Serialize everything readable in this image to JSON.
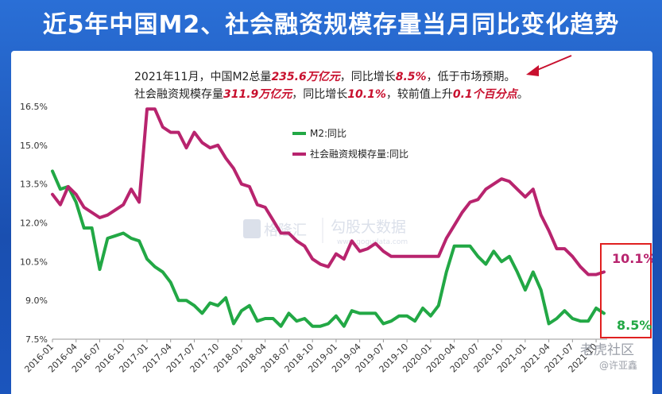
{
  "title": "近5年中国M2、社会融资规模存量当月同比变化趋势",
  "note": {
    "line1": [
      "2021年11月，中国M2总量",
      "235.6万亿元",
      "，同比增长",
      "8.5%",
      "，低于市场预期。"
    ],
    "line2": [
      "社会融资规模存量",
      "311.9万亿元",
      "，同比增长",
      "10.1%",
      "，较前值上升",
      "0.1个百分点",
      "。"
    ]
  },
  "watermark": {
    "brand": "格隆汇",
    "text": "勾股大数据",
    "url": "www.gogudata.com"
  },
  "corner_watermark": {
    "line1": "老虎社区",
    "line2": "@许亚鑫"
  },
  "colors": {
    "m2": "#22a845",
    "tsf": "#b8246e",
    "arrow": "#c8102e",
    "box": "#e02020"
  },
  "chart_data": {
    "type": "line",
    "x": [
      "2016-01",
      "2016-02",
      "2016-03",
      "2016-04",
      "2016-05",
      "2016-06",
      "2016-07",
      "2016-08",
      "2016-09",
      "2016-10",
      "2016-11",
      "2016-12",
      "2017-01",
      "2017-02",
      "2017-03",
      "2017-04",
      "2017-05",
      "2017-06",
      "2017-07",
      "2017-08",
      "2017-09",
      "2017-10",
      "2017-11",
      "2017-12",
      "2018-01",
      "2018-02",
      "2018-03",
      "2018-04",
      "2018-05",
      "2018-06",
      "2018-07",
      "2018-08",
      "2018-09",
      "2018-10",
      "2018-11",
      "2018-12",
      "2019-01",
      "2019-02",
      "2019-03",
      "2019-04",
      "2019-05",
      "2019-06",
      "2019-07",
      "2019-08",
      "2019-09",
      "2019-10",
      "2019-11",
      "2019-12",
      "2020-01",
      "2020-02",
      "2020-03",
      "2020-04",
      "2020-05",
      "2020-06",
      "2020-07",
      "2020-08",
      "2020-09",
      "2020-10",
      "2020-11",
      "2020-12",
      "2021-01",
      "2021-02",
      "2021-03",
      "2021-04",
      "2021-05",
      "2021-06",
      "2021-07",
      "2021-08",
      "2021-09",
      "2021-10",
      "2021-11"
    ],
    "xtick_labels": [
      "2016-01",
      "2016-04",
      "2016-07",
      "2016-10",
      "2017-01",
      "2017-04",
      "2017-07",
      "2017-10",
      "2018-01",
      "2018-04",
      "2018-07",
      "2018-10",
      "2019-01",
      "2019-04",
      "2019-07",
      "2019-10",
      "2020-01",
      "2020-04",
      "2020-07",
      "2020-10",
      "2021-01",
      "2021-04",
      "2021-07",
      "2021-10"
    ],
    "yticks": [
      "7.5%",
      "9.0%",
      "10.5%",
      "12.0%",
      "13.5%",
      "15.0%",
      "16.5%"
    ],
    "ylim": [
      7.5,
      16.5
    ],
    "series": [
      {
        "name": "M2:同比",
        "values": [
          14.0,
          13.3,
          13.4,
          12.8,
          11.8,
          11.8,
          10.2,
          11.4,
          11.5,
          11.6,
          11.4,
          11.3,
          10.6,
          10.3,
          10.1,
          9.7,
          9.0,
          9.0,
          8.8,
          8.5,
          8.9,
          8.8,
          9.1,
          8.1,
          8.6,
          8.8,
          8.2,
          8.3,
          8.3,
          8.0,
          8.5,
          8.2,
          8.3,
          8.0,
          8.0,
          8.1,
          8.4,
          8.0,
          8.6,
          8.5,
          8.5,
          8.5,
          8.1,
          8.2,
          8.4,
          8.4,
          8.2,
          8.7,
          8.4,
          8.8,
          10.1,
          11.1,
          11.1,
          11.1,
          10.7,
          10.4,
          10.9,
          10.5,
          10.7,
          10.1,
          9.4,
          10.1,
          9.4,
          8.1,
          8.3,
          8.6,
          8.3,
          8.2,
          8.2,
          8.7,
          8.5
        ]
      },
      {
        "name": "社会融资规模存量:同比",
        "values": [
          13.1,
          12.7,
          13.4,
          13.1,
          12.6,
          12.4,
          12.2,
          12.3,
          12.5,
          12.7,
          13.3,
          12.8,
          16.4,
          16.4,
          15.7,
          15.5,
          15.5,
          14.9,
          15.5,
          15.1,
          14.9,
          15.0,
          14.5,
          14.1,
          13.5,
          13.4,
          12.7,
          12.6,
          12.1,
          11.6,
          11.6,
          11.3,
          11.1,
          10.6,
          10.4,
          10.3,
          10.8,
          10.6,
          11.3,
          10.9,
          11.0,
          11.2,
          10.9,
          10.7,
          10.7,
          10.7,
          10.7,
          10.7,
          10.7,
          10.7,
          11.4,
          11.9,
          12.4,
          12.8,
          12.9,
          13.3,
          13.5,
          13.7,
          13.6,
          13.3,
          13.0,
          13.3,
          12.3,
          11.7,
          11.0,
          11.0,
          10.7,
          10.3,
          10.0,
          10.0,
          10.1
        ]
      }
    ],
    "end_labels": {
      "m2": "8.5%",
      "tsf": "10.1%"
    }
  }
}
